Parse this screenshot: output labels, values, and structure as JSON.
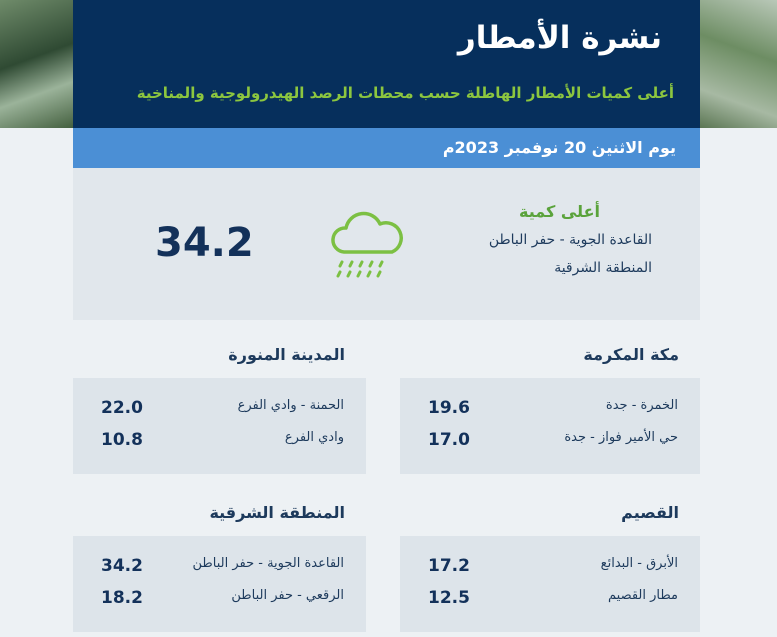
{
  "header": {
    "title": "نشرة الأمطار",
    "subtitle": "أعلى كميات الأمطار الهاطلة حسب محطات الرصد الهيدرولوجية والمناخية",
    "date": "يوم الاثنين 20 نوفمبر 2023م"
  },
  "highlight": {
    "label": "أعلى كمية",
    "lines": [
      "القاعدة الجوية - حفر الباطن",
      "المنطقة الشرقية"
    ],
    "value": "34.2"
  },
  "regions": [
    {
      "name": "مكة المكرمة",
      "stations": [
        {
          "name": "الخمرة - جدة",
          "value": "19.6"
        },
        {
          "name": "حي الأمير فواز - جدة",
          "value": "17.0"
        }
      ]
    },
    {
      "name": "المدينة المنورة",
      "stations": [
        {
          "name": "الحمنة - وادي الفرع",
          "value": "22.0"
        },
        {
          "name": "وادي الفرع",
          "value": "10.8"
        }
      ]
    },
    {
      "name": "القصيم",
      "stations": [
        {
          "name": "الأبرق - البدائع",
          "value": "17.2"
        },
        {
          "name": "مطار القصيم",
          "value": "12.5"
        }
      ]
    },
    {
      "name": "المنطقة الشرقية",
      "stations": [
        {
          "name": "القاعدة الجوية - حفر الباطن",
          "value": "34.2"
        },
        {
          "name": "الرقعي - حفر الباطن",
          "value": "18.2"
        }
      ]
    }
  ]
}
